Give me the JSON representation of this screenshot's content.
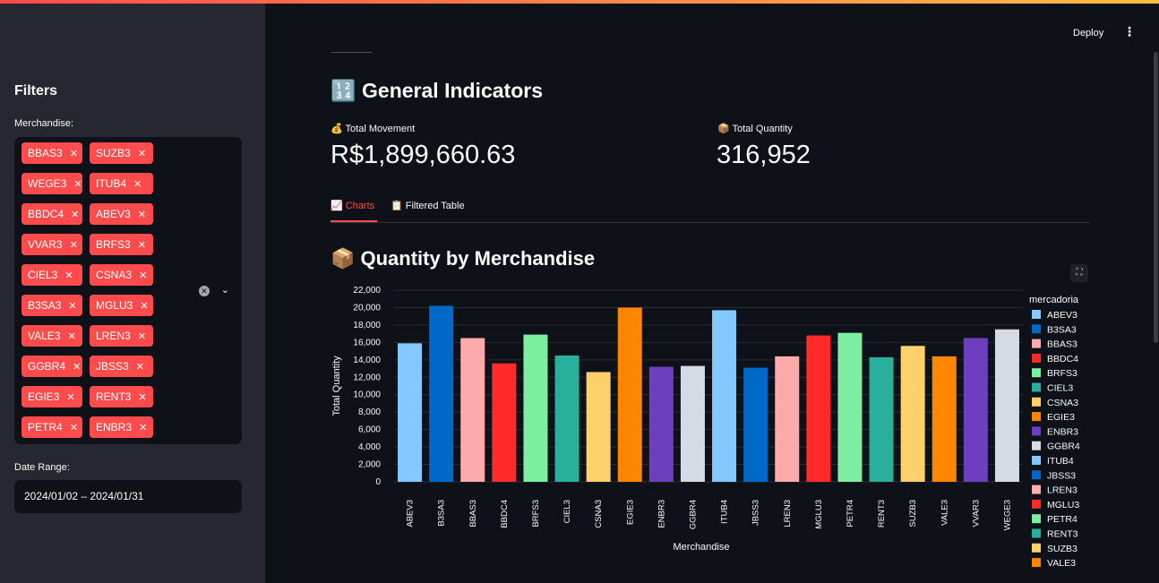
{
  "sidebar": {
    "title": "Filters",
    "merch_label": "Merchandise:",
    "tags": [
      "BBAS3",
      "SUZB3",
      "WEGE3",
      "ITUB4",
      "BBDC4",
      "ABEV3",
      "VVAR3",
      "BRFS3",
      "CIEL3",
      "CSNA3",
      "B3SA3",
      "MGLU3",
      "VALE3",
      "LREN3",
      "GGBR4",
      "JBSS3",
      "EGIE3",
      "RENT3",
      "PETR4",
      "ENBR3"
    ],
    "tag_remove": "✕",
    "clear_icon": "✕",
    "chevron_icon": "⌄",
    "date_label": "Date Range:",
    "date_value": "2024/01/02 – 2024/01/31"
  },
  "header": {
    "deploy": "Deploy",
    "menu_icon": "⋮"
  },
  "main": {
    "title": "🔢 General Indicators",
    "metric1_label": "💰 Total Movement",
    "metric1_value": "R$1,899,660.63",
    "metric2_label": "📦 Total Quantity",
    "metric2_value": "316,952",
    "tab1": "📈 Charts",
    "tab2": "📋 Filtered Table",
    "chart_title": "📦 Quantity by Merchandise",
    "fullscreen_icon": "⛶"
  },
  "chart_data": {
    "type": "bar",
    "xlabel": "Merchandise",
    "ylabel": "Total Quantity",
    "legend_title": "mercadoria",
    "legend_position": "right",
    "ylim": [
      0,
      22000
    ],
    "yticks": [
      0,
      2000,
      4000,
      6000,
      8000,
      10000,
      12000,
      14000,
      16000,
      18000,
      20000,
      22000
    ],
    "ytick_labels": [
      "0",
      "2,000",
      "4,000",
      "6,000",
      "8,000",
      "10,000",
      "12,000",
      "14,000",
      "16,000",
      "18,000",
      "20,000",
      "22,000"
    ],
    "categories": [
      "ABEV3",
      "B3SA3",
      "BBAS3",
      "BBDC4",
      "BRFS3",
      "CIEL3",
      "CSNA3",
      "EGIE3",
      "ENBR3",
      "GGBR4",
      "ITUB4",
      "JBSS3",
      "LREN3",
      "MGLU3",
      "PETR4",
      "RENT3",
      "SUZB3",
      "VALE3",
      "VVAR3",
      "WEGE3"
    ],
    "values": [
      15900,
      20200,
      16500,
      13600,
      16900,
      14500,
      12600,
      20000,
      13200,
      13300,
      19700,
      13100,
      14400,
      16800,
      17100,
      14300,
      15600,
      14400,
      16500,
      17500
    ],
    "colors": [
      "#83c9ff",
      "#0068c9",
      "#ffabab",
      "#ff2b2b",
      "#7defa1",
      "#29b09d",
      "#ffd16a",
      "#ff8700",
      "#6d3fc0",
      "#d5dae5",
      "#83c9ff",
      "#0068c9",
      "#ffabab",
      "#ff2b2b",
      "#7defa1",
      "#29b09d",
      "#ffd16a",
      "#ff8700",
      "#6d3fc0",
      "#d5dae5"
    ],
    "legend_visible": [
      "ABEV3",
      "B3SA3",
      "BBAS3",
      "BBDC4",
      "BRFS3",
      "CIEL3",
      "CSNA3",
      "EGIE3",
      "ENBR3",
      "GGBR4",
      "ITUB4",
      "JBSS3",
      "LREN3",
      "MGLU3",
      "PETR4",
      "RENT3",
      "SUZB3",
      "VALE3"
    ]
  }
}
